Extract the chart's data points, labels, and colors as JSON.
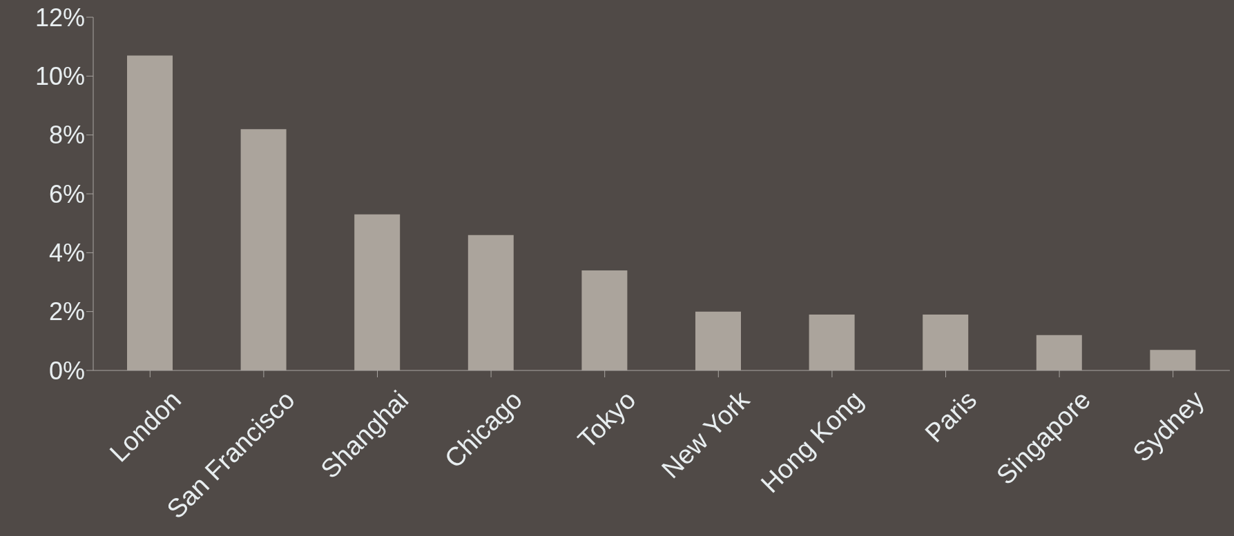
{
  "chart_data": {
    "type": "bar",
    "categories": [
      "London",
      "San Francisco",
      "Shanghai",
      "Chicago",
      "Tokyo",
      "New York",
      "Hong Kong",
      "Paris",
      "Singapore",
      "Sydney"
    ],
    "values": [
      10.7,
      8.2,
      5.3,
      4.6,
      3.4,
      2.0,
      1.9,
      1.9,
      1.2,
      0.7
    ],
    "color": "#aba49c",
    "ylim": [
      0,
      12
    ],
    "yticks": [
      {
        "value": 0,
        "label": "0%"
      },
      {
        "value": 2,
        "label": "2%"
      },
      {
        "value": 4,
        "label": "4%"
      },
      {
        "value": 6,
        "label": "6%"
      },
      {
        "value": 8,
        "label": "8%"
      },
      {
        "value": 10,
        "label": "10%"
      },
      {
        "value": 12,
        "label": "12%"
      }
    ],
    "grid": false,
    "legend": false
  }
}
